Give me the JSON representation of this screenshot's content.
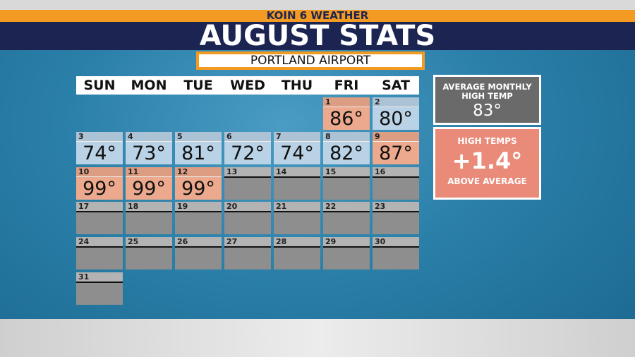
{
  "header": {
    "network": "KOIN 6 WEATHER",
    "title": "AUGUST STATS",
    "subtitle": "PORTLAND AIRPORT"
  },
  "calendar": {
    "weekdays": [
      "SUN",
      "MON",
      "TUE",
      "WED",
      "THU",
      "FRI",
      "SAT"
    ],
    "first_weekday": 5,
    "days": [
      {
        "day": "1",
        "temp": "86°",
        "color": "#eda98d"
      },
      {
        "day": "2",
        "temp": "80°",
        "color": "#b9d2e6"
      },
      {
        "day": "3",
        "temp": "74°",
        "color": "#b9d2e6"
      },
      {
        "day": "4",
        "temp": "73°",
        "color": "#b9d2e6"
      },
      {
        "day": "5",
        "temp": "81°",
        "color": "#b9d2e6"
      },
      {
        "day": "6",
        "temp": "72°",
        "color": "#b9d2e6"
      },
      {
        "day": "7",
        "temp": "74°",
        "color": "#b9d2e6"
      },
      {
        "day": "8",
        "temp": "82°",
        "color": "#b9d2e6"
      },
      {
        "day": "9",
        "temp": "87°",
        "color": "#eda98d"
      },
      {
        "day": "10",
        "temp": "99°",
        "color": "#eda98d"
      },
      {
        "day": "11",
        "temp": "99°",
        "color": "#eda98d"
      },
      {
        "day": "12",
        "temp": "99°",
        "color": "#eda98d"
      },
      {
        "day": "13"
      },
      {
        "day": "14"
      },
      {
        "day": "15"
      },
      {
        "day": "16"
      },
      {
        "day": "17"
      },
      {
        "day": "18"
      },
      {
        "day": "19"
      },
      {
        "day": "20"
      },
      {
        "day": "21"
      },
      {
        "day": "22"
      },
      {
        "day": "23"
      },
      {
        "day": "24"
      },
      {
        "day": "25"
      },
      {
        "day": "26"
      },
      {
        "day": "27"
      },
      {
        "day": "28"
      },
      {
        "day": "29"
      },
      {
        "day": "30"
      },
      {
        "day": "31"
      }
    ]
  },
  "average": {
    "label": "AVERAGE MONTHLY HIGH TEMP",
    "value": "83°"
  },
  "anomaly": {
    "label": "HIGH TEMPS",
    "value": "+1.4°",
    "note": "ABOVE AVERAGE"
  }
}
